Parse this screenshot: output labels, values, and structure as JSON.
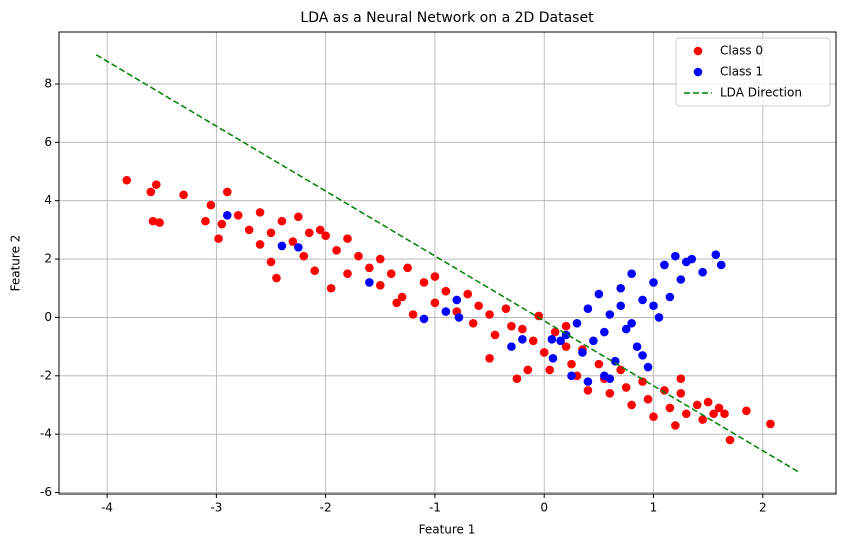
{
  "chart_data": {
    "type": "scatter",
    "title": "LDA as a Neural Network on a 2D Dataset",
    "x_label": "Feature 1",
    "y_label": "Feature 2",
    "xlim": [
      -4.44,
      2.67
    ],
    "ylim": [
      -6.05,
      9.78
    ],
    "xticks": [
      -4,
      -3,
      -2,
      -1,
      0,
      1,
      2
    ],
    "yticks": [
      -6,
      -4,
      -2,
      0,
      2,
      4,
      6,
      8
    ],
    "grid": true,
    "legend": "upper right",
    "series": [
      {
        "name": "Class 0",
        "color": "#ff0000",
        "kind": "scatter",
        "x": [
          -3.82,
          -3.6,
          -3.55,
          -3.58,
          -3.52,
          -3.3,
          -3.05,
          -3.1,
          -2.95,
          -2.9,
          -2.98,
          -2.8,
          -2.7,
          -2.6,
          -2.5,
          -2.4,
          -2.6,
          -2.3,
          -2.25,
          -2.15,
          -2.0,
          -2.2,
          -2.5,
          -2.45,
          -2.1,
          -1.9,
          -1.8,
          -1.7,
          -1.95,
          -1.6,
          -1.5,
          -1.5,
          -1.4,
          -1.3,
          -1.25,
          -1.1,
          -1.0,
          -1.0,
          -0.9,
          -1.2,
          -0.8,
          -0.7,
          -0.65,
          -0.6,
          -0.5,
          -0.45,
          -0.35,
          -0.3,
          -0.5,
          -0.2,
          -0.25,
          -0.1,
          -0.05,
          0.0,
          0.05,
          0.1,
          0.2,
          0.25,
          0.3,
          0.35,
          0.4,
          0.5,
          0.55,
          0.6,
          0.7,
          0.75,
          0.8,
          0.9,
          0.95,
          1.0,
          1.1,
          1.15,
          1.2,
          1.25,
          1.3,
          1.4,
          1.45,
          1.5,
          1.55,
          1.6,
          1.65,
          1.7,
          1.85,
          2.07,
          1.25,
          0.2,
          -1.8,
          -2.05,
          -1.35,
          -0.15
        ],
        "values": [
          4.7,
          4.3,
          4.55,
          3.3,
          3.25,
          4.2,
          3.85,
          3.3,
          3.2,
          4.3,
          2.7,
          3.5,
          3.0,
          3.6,
          2.9,
          3.3,
          2.5,
          2.6,
          3.45,
          2.9,
          2.8,
          2.1,
          1.9,
          1.35,
          1.6,
          2.3,
          1.5,
          2.1,
          1.0,
          1.7,
          2.0,
          1.1,
          1.5,
          0.7,
          1.7,
          1.2,
          1.4,
          0.5,
          0.9,
          0.1,
          0.2,
          0.8,
          -0.2,
          0.4,
          0.1,
          -0.6,
          0.3,
          -0.3,
          -1.4,
          -0.4,
          -2.1,
          -0.8,
          0.05,
          -1.2,
          -1.8,
          -0.5,
          -1.0,
          -1.6,
          -2.0,
          -1.1,
          -2.5,
          -1.6,
          -2.1,
          -2.6,
          -1.8,
          -2.4,
          -3.0,
          -2.2,
          -2.8,
          -3.4,
          -2.5,
          -3.1,
          -3.7,
          -2.6,
          -3.3,
          -3.0,
          -3.5,
          -2.9,
          -3.3,
          -3.1,
          -3.3,
          -4.2,
          -3.2,
          -3.65,
          -2.1,
          -0.3,
          2.7,
          3.0,
          0.5,
          -1.8
        ]
      },
      {
        "name": "Class 1",
        "color": "#0000ff",
        "kind": "scatter",
        "x": [
          0.2,
          0.3,
          0.35,
          0.4,
          0.45,
          0.5,
          0.55,
          0.6,
          0.65,
          0.7,
          0.75,
          0.8,
          0.85,
          0.9,
          0.95,
          1.0,
          1.05,
          1.1,
          1.15,
          1.2,
          1.25,
          1.3,
          1.35,
          0.4,
          0.6,
          0.25,
          0.15,
          0.9,
          0.8,
          0.55,
          1.0,
          0.7,
          -2.9,
          -2.4,
          -2.25,
          -1.6,
          -0.9,
          -0.8,
          -0.78,
          -1.1,
          -0.3,
          -0.2,
          0.07,
          0.08,
          1.57,
          1.62,
          1.45
        ],
        "values": [
          -0.6,
          -0.2,
          -1.2,
          0.3,
          -0.8,
          0.8,
          -2.0,
          0.1,
          -1.5,
          1.0,
          -0.4,
          1.5,
          -1.0,
          0.6,
          -1.7,
          1.2,
          0.0,
          1.8,
          0.7,
          2.1,
          1.3,
          1.9,
          2.0,
          -2.2,
          -2.1,
          -2.0,
          -0.8,
          -1.3,
          -0.2,
          -0.5,
          0.4,
          0.4,
          3.5,
          2.45,
          2.4,
          1.2,
          0.2,
          0.6,
          0.0,
          -0.05,
          -1.0,
          -0.75,
          -0.75,
          -1.4,
          2.15,
          1.8,
          1.55
        ]
      },
      {
        "name": "LDA Direction",
        "color": "#008000",
        "kind": "line",
        "linestyle": "dashed",
        "x": [
          -4.1,
          2.33
        ],
        "values": [
          9.0,
          -5.3
        ]
      }
    ]
  }
}
